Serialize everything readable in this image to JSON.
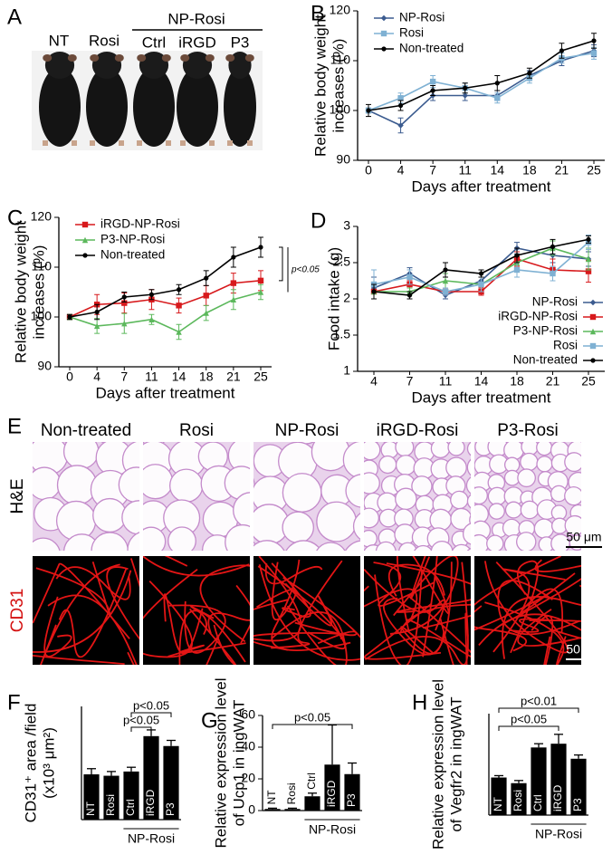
{
  "panel_letters": [
    "A",
    "B",
    "C",
    "D",
    "E",
    "F",
    "G",
    "H"
  ],
  "photo": {
    "labels": [
      "NT",
      "Rosi",
      "Ctrl",
      "iRGD",
      "P3"
    ],
    "group": "NP-Rosi"
  },
  "histology": {
    "columns": [
      "Non-treated",
      "Rosi",
      "NP-Rosi",
      "iRGD-Rosi",
      "P3-Rosi"
    ],
    "rows": [
      "H&E",
      "CD31"
    ],
    "scale_bar": "50 μm"
  },
  "chart_data": [
    {
      "type": "line",
      "y_label": [
        "Relative body weight",
        "increases (%)"
      ],
      "x_label": "Days after treatment",
      "categories": [
        "0",
        "4",
        "7",
        "11",
        "14",
        "18",
        "21",
        "25"
      ],
      "ylim": [
        90,
        120
      ],
      "yticks": [
        90,
        100,
        110,
        120
      ],
      "legend": "upper left",
      "series": [
        {
          "name": "NP-Rosi",
          "color": "#3b5b8f",
          "marker": "diamond",
          "values": [
            100,
            97,
            103,
            103,
            103,
            107,
            110,
            112
          ],
          "errors": [
            0.5,
            1.5,
            1,
            1,
            1,
            1,
            1,
            1.2
          ]
        },
        {
          "name": "Rosi",
          "color": "#7fb1d3",
          "marker": "square",
          "values": [
            100,
            102.5,
            105.8,
            104.5,
            102.5,
            106.5,
            110.5,
            111.5
          ],
          "errors": [
            0.5,
            1,
            1.2,
            1,
            1,
            1,
            1,
            1.2
          ]
        },
        {
          "name": "Non-treated",
          "color": "#000000",
          "marker": "circle",
          "values": [
            100,
            101,
            104,
            104.5,
            105.5,
            107.5,
            112,
            114
          ],
          "errors": [
            1.2,
            1,
            1,
            1,
            1.5,
            1,
            1.5,
            1.5
          ]
        }
      ]
    },
    {
      "type": "line",
      "y_label": [
        "Relative body weight",
        "increases (%)"
      ],
      "x_label": "Days after treatment",
      "categories": [
        "0",
        "4",
        "7",
        "11",
        "14",
        "18",
        "21",
        "25"
      ],
      "ylim": [
        90,
        120
      ],
      "yticks": [
        90,
        100,
        110,
        120
      ],
      "legend": "upper left",
      "annotations": [
        {
          "text": "p<0.05"
        }
      ],
      "series": [
        {
          "name": "iRGD-NP-Rosi",
          "color": "#d7191c",
          "marker": "square",
          "values": [
            100,
            102.5,
            102.8,
            103.5,
            102.3,
            104.3,
            106.8,
            107.3
          ],
          "errors": [
            0.5,
            2,
            2,
            2,
            1.5,
            2,
            2,
            2
          ]
        },
        {
          "name": "P3-NP-Rosi",
          "color": "#5cb85c",
          "marker": "triangle",
          "values": [
            100,
            98.2,
            98.7,
            99.5,
            97,
            100.8,
            103.5,
            105
          ],
          "errors": [
            0.5,
            1.5,
            2,
            1,
            1.5,
            1.5,
            2,
            1.5
          ]
        },
        {
          "name": "Non-treated",
          "color": "#000000",
          "marker": "circle",
          "values": [
            100,
            101,
            104,
            104.5,
            105.5,
            107.8,
            112,
            114
          ],
          "errors": [
            0.5,
            1.5,
            1,
            1,
            1,
            1.5,
            2,
            2
          ]
        }
      ]
    },
    {
      "type": "line",
      "y_label": [
        "Food intake (g)"
      ],
      "x_label": "Days after treatment",
      "categories": [
        "4",
        "7",
        "11",
        "14",
        "18",
        "21",
        "25"
      ],
      "ylim": [
        1,
        3
      ],
      "yticks": [
        1,
        1.5,
        2,
        2.5,
        3
      ],
      "legend": "lower right",
      "series": [
        {
          "name": "NP-Rosi",
          "color": "#3b5b8f",
          "marker": "diamond",
          "values": [
            2.15,
            2.35,
            2.05,
            2.25,
            2.7,
            2.6,
            2.55
          ],
          "errors": [
            0.15,
            0.08,
            0.05,
            0.1,
            0.08,
            0.1,
            0.1
          ]
        },
        {
          "name": "iRGD-NP-Rosi",
          "color": "#d7191c",
          "marker": "square",
          "values": [
            2.1,
            2.2,
            2.1,
            2.1,
            2.55,
            2.4,
            2.38
          ],
          "errors": [
            0.1,
            0.05,
            0.05,
            0.05,
            0.1,
            0.15,
            0.15
          ]
        },
        {
          "name": "P3-NP-Rosi",
          "color": "#5cb85c",
          "marker": "triangle",
          "values": [
            2.1,
            2.1,
            2.25,
            2.2,
            2.5,
            2.7,
            2.55
          ],
          "errors": [
            0.1,
            0.05,
            0.1,
            0.1,
            0.1,
            0.1,
            0.15
          ]
        },
        {
          "name": "Rosi",
          "color": "#7fb1d3",
          "marker": "square",
          "values": [
            2.2,
            2.3,
            2.1,
            2.2,
            2.4,
            2.35,
            2.78
          ],
          "errors": [
            0.2,
            0.1,
            0.05,
            0.1,
            0.1,
            0.1,
            0.1
          ]
        },
        {
          "name": "Non-treated",
          "color": "#000000",
          "marker": "circle",
          "values": [
            2.1,
            2.05,
            2.4,
            2.35,
            2.6,
            2.72,
            2.82
          ],
          "errors": [
            0.1,
            0.05,
            0.1,
            0.05,
            0.1,
            0.1,
            0.05
          ]
        }
      ]
    },
    {
      "type": "bar",
      "y_label": [
        "CD31⁺ area /field",
        "(x10³ μm²)"
      ],
      "group_label": "NP-Rosi",
      "categories": [
        "NT",
        "Rosi",
        "Ctrl",
        "iRGD",
        "P3"
      ],
      "ylim": [
        0,
        4
      ],
      "color": "#000000",
      "values": [
        1.6,
        1.55,
        1.7,
        2.95,
        2.6
      ],
      "errors": [
        0.2,
        0.15,
        0.15,
        0.22,
        0.2
      ],
      "annotations": [
        {
          "text": "p<0.05"
        },
        {
          "text": "p<0.05"
        }
      ]
    },
    {
      "type": "bar",
      "y_label": [
        "Relative expression level",
        "of Ucp1 in ingWAT"
      ],
      "group_label": "NP-Rosi",
      "categories": [
        "NT",
        "Rosi",
        "Ctrl",
        "iRGD",
        "P3"
      ],
      "ylim": [
        0,
        60
      ],
      "yticks": [
        0,
        20,
        40,
        60
      ],
      "color": "#000000",
      "values": [
        1,
        1,
        9,
        29,
        23
      ],
      "errors": [
        0.5,
        0.5,
        2,
        25,
        7
      ],
      "annotations": [
        {
          "text": "p<0.05"
        }
      ]
    },
    {
      "type": "bar",
      "y_label": [
        "Relative expression level",
        "of Vegfr2 in ingWAT"
      ],
      "group_label": "NP-Rosi",
      "categories": [
        "NT",
        "Rosi",
        "Ctrl",
        "iRGD",
        "P3"
      ],
      "ylim": [
        0,
        2.7
      ],
      "color": "#000000",
      "values": [
        1,
        0.85,
        1.8,
        1.9,
        1.5
      ],
      "errors": [
        0.05,
        0.07,
        0.1,
        0.25,
        0.1
      ],
      "annotations": [
        {
          "text": "p<0.01"
        },
        {
          "text": "p<0.05"
        }
      ]
    }
  ]
}
